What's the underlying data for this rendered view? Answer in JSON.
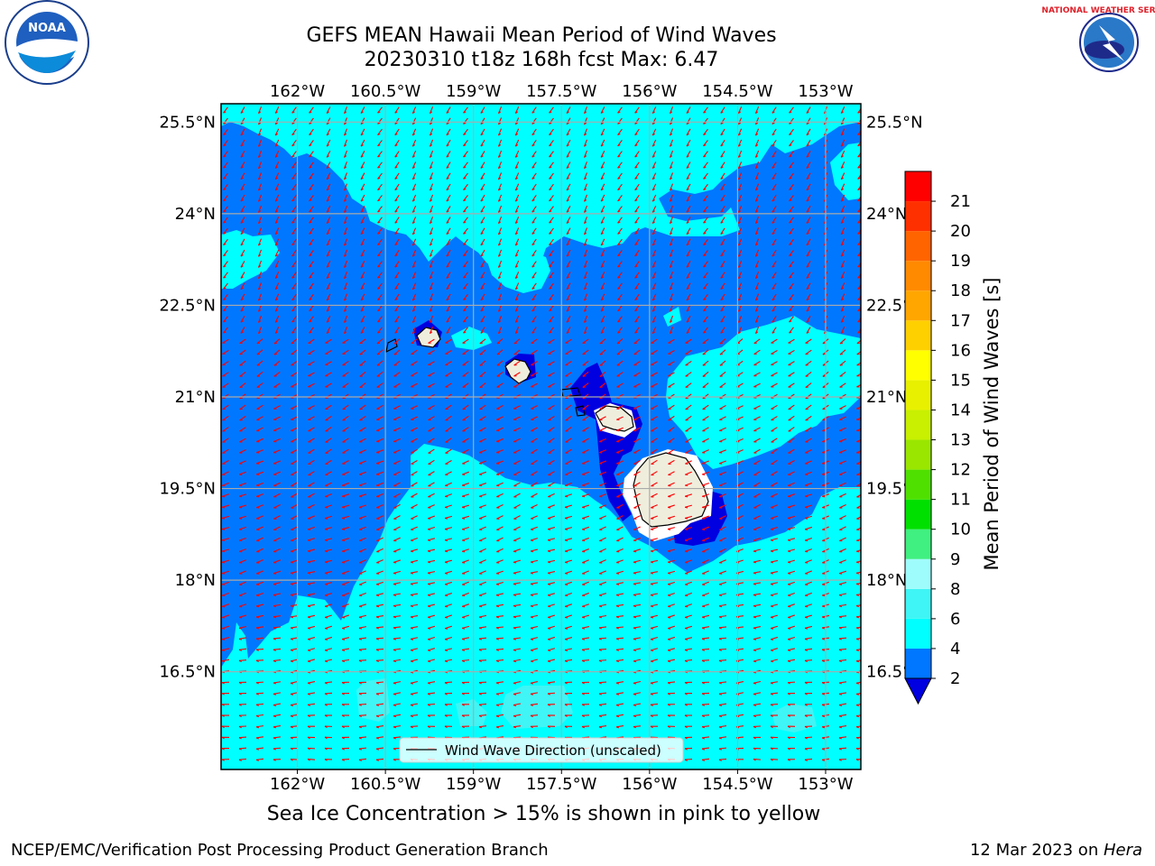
{
  "header": {
    "title_line1": "GEFS MEAN Hawaii Mean Period of Wind Waves",
    "title_line2": "20230310 t18z 168h fcst   Max: 6.47"
  },
  "logos": {
    "left": "NOAA",
    "left_ring": "NATIONAL OCEANIC AND ATMOSPHERIC ADMINISTRATION · U.S. DEPARTMENT OF COMMERCE",
    "right_ring": "NATIONAL WEATHER SERVICE"
  },
  "caption": "Sea Ice Concentration > 15% is shown in pink to yellow",
  "footer": {
    "left": "NCEP/EMC/Verification Post Processing Product Generation Branch",
    "right_date": "12 Mar 2023 on ",
    "right_host": "Hera"
  },
  "chart_data": {
    "type": "heatmap",
    "title": "GEFS MEAN Hawaii Mean Period of Wind Waves",
    "subtitle": "20230310 t18z 168h fcst   Max: 6.47",
    "max_value": 6.47,
    "x_axis": {
      "kind": "longitude",
      "range": [
        -163.3,
        -152.4
      ],
      "ticks": [
        -162,
        -160.5,
        -159,
        -157.5,
        -156,
        -154.5,
        -153
      ],
      "tick_labels": [
        "162°W",
        "160.5°W",
        "159°W",
        "157.5°W",
        "156°W",
        "154.5°W",
        "153°W"
      ]
    },
    "y_axis": {
      "kind": "latitude",
      "range": [
        14.9,
        25.8
      ],
      "ticks": [
        16.5,
        18,
        19.5,
        21,
        22.5,
        24,
        25.5
      ],
      "tick_labels": [
        "16.5°N",
        "18°N",
        "19.5°N",
        "21°N",
        "22.5°N",
        "24°N",
        "25.5°N"
      ]
    },
    "grid": true,
    "colorbar": {
      "label": "Mean Period of Wind Waves [s]",
      "levels": [
        2,
        4,
        6,
        8,
        9,
        10,
        11,
        12,
        13,
        14,
        15,
        16,
        17,
        18,
        19,
        20,
        21
      ],
      "tick_labels": [
        "2",
        "4",
        "6",
        "8",
        "9",
        "10",
        "11",
        "12",
        "13",
        "14",
        "15",
        "16",
        "17",
        "18",
        "19",
        "20",
        "21"
      ],
      "colors": [
        "#0077ff",
        "#00ffff",
        "#3ff5f5",
        "#9ffcfc",
        "#40f080",
        "#00e000",
        "#50e000",
        "#9ae600",
        "#c8f000",
        "#e8f000",
        "#ffff00",
        "#ffd000",
        "#ffa600",
        "#ff8a00",
        "#ff6400",
        "#ff3000",
        "#ff0000"
      ],
      "under_color": "#0000e0",
      "extend": "min"
    },
    "legend": {
      "entries": [
        "Wind Wave Direction (unscaled)"
      ],
      "position": "lower-center"
    },
    "colors": {
      "arrows": "#ff0000",
      "land": "#efeedd",
      "grid": "#aaaaaa"
    }
  }
}
